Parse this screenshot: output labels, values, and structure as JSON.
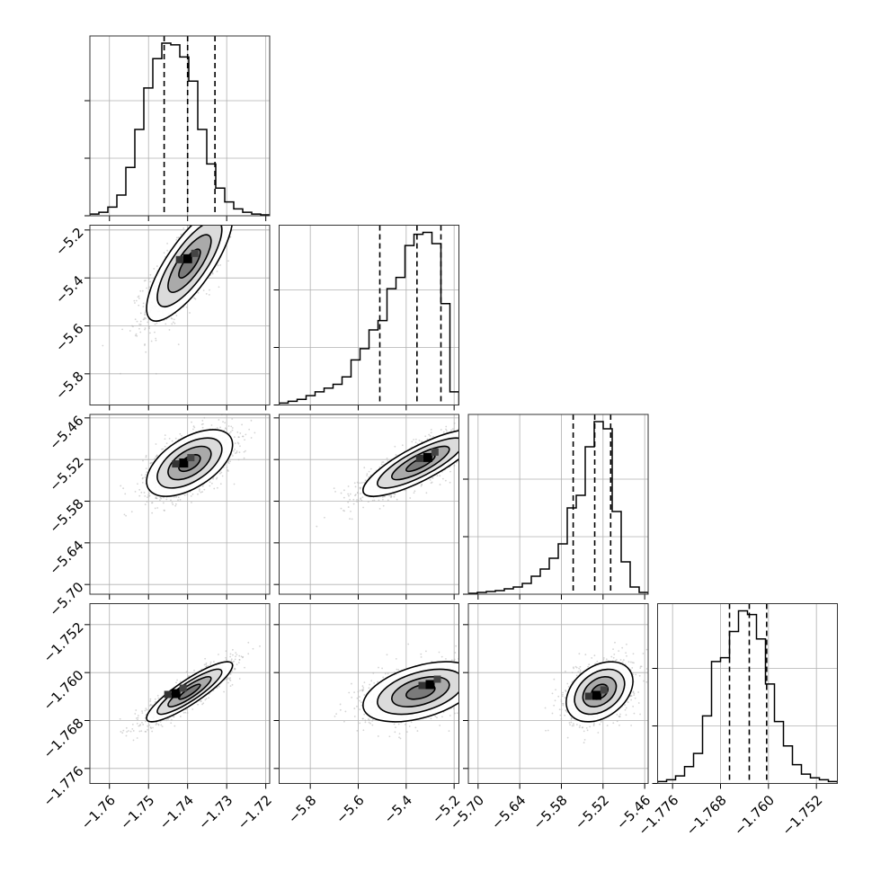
{
  "chart_data": {
    "type": "corner",
    "title": "",
    "parameters": [
      {
        "range": [
          -1.765,
          -1.719
        ],
        "ticks": [
          -1.76,
          -1.75,
          -1.74,
          -1.73,
          -1.72
        ],
        "tick_labels": [
          "−1.76",
          "−1.75",
          "−1.74",
          "−1.73",
          "−1.72"
        ],
        "histogram": {
          "bins": 20,
          "counts": [
            0.01,
            0.02,
            0.05,
            0.12,
            0.28,
            0.5,
            0.74,
            0.91,
            1.0,
            0.99,
            0.92,
            0.78,
            0.5,
            0.3,
            0.16,
            0.08,
            0.04,
            0.02,
            0.01,
            0.005
          ],
          "quantiles": [
            -1.746,
            -1.74,
            -1.733
          ]
        }
      },
      {
        "range": [
          -5.93,
          -5.18
        ],
        "ticks": [
          -5.8,
          -5.6,
          -5.4,
          -5.2
        ],
        "tick_labels": [
          "−5.8",
          "−5.6",
          "−5.4",
          "−5.2"
        ],
        "histogram": {
          "bins": 20,
          "counts": [
            0.01,
            0.02,
            0.03,
            0.05,
            0.07,
            0.09,
            0.11,
            0.15,
            0.24,
            0.3,
            0.4,
            0.45,
            0.62,
            0.68,
            0.85,
            0.91,
            0.92,
            0.86,
            0.54,
            0.07
          ],
          "quantiles": [
            -5.51,
            -5.355,
            -5.255
          ]
        }
      },
      {
        "range": [
          -5.714,
          -5.455
        ],
        "ticks": [
          -5.7,
          -5.64,
          -5.58,
          -5.52,
          -5.46
        ],
        "tick_labels": [
          "−5.70",
          "−5.64",
          "−5.58",
          "−5.52",
          "−5.46"
        ],
        "histogram": {
          "bins": 20,
          "counts": [
            0.005,
            0.01,
            0.015,
            0.02,
            0.03,
            0.04,
            0.06,
            0.1,
            0.14,
            0.2,
            0.28,
            0.48,
            0.55,
            0.82,
            0.96,
            0.92,
            0.46,
            0.18,
            0.04,
            0.01
          ],
          "quantiles": [
            -5.563,
            -5.532,
            -5.509
          ]
        }
      },
      {
        "range": [
          -1.7785,
          -1.7485
        ],
        "ticks": [
          -1.776,
          -1.768,
          -1.76,
          -1.752
        ],
        "tick_labels": [
          "−1.776",
          "−1.768",
          "−1.760",
          "−1.752"
        ],
        "histogram": {
          "bins": 20,
          "counts": [
            0.01,
            0.02,
            0.04,
            0.09,
            0.16,
            0.36,
            0.65,
            0.67,
            0.81,
            0.92,
            0.9,
            0.77,
            0.53,
            0.33,
            0.2,
            0.1,
            0.05,
            0.03,
            0.02,
            0.01
          ],
          "quantiles": [
            -1.7665,
            -1.7632,
            -1.7603
          ]
        }
      }
    ],
    "pairs": [
      {
        "x": 0,
        "y": 1,
        "center": [
          -1.7395,
          -5.34
        ],
        "spread": [
          0.0055,
          0.12
        ],
        "corr": 0.78,
        "peak": [
          -1.74,
          -5.32
        ]
      },
      {
        "x": 0,
        "y": 2,
        "center": [
          -1.7395,
          -5.525
        ],
        "spread": [
          0.0055,
          0.024
        ],
        "corr": 0.55,
        "peak": [
          -1.741,
          -5.525
        ]
      },
      {
        "x": 1,
        "y": 2,
        "center": [
          -5.34,
          -5.525
        ],
        "spread": [
          0.12,
          0.024
        ],
        "corr": 0.82,
        "peak": [
          -5.31,
          -5.517
        ]
      },
      {
        "x": 0,
        "y": 3,
        "center": [
          -1.7395,
          -1.7632
        ],
        "spread": [
          0.0055,
          0.0025
        ],
        "corr": 0.88,
        "peak": [
          -1.743,
          -1.7635
        ]
      },
      {
        "x": 1,
        "y": 3,
        "center": [
          -5.34,
          -1.7632
        ],
        "spread": [
          0.12,
          0.0025
        ],
        "corr": 0.45,
        "peak": [
          -5.3,
          -1.762
        ]
      },
      {
        "x": 2,
        "y": 3,
        "center": [
          -5.525,
          -1.7632
        ],
        "spread": [
          0.024,
          0.0025
        ],
        "corr": 0.35,
        "peak": [
          -5.529,
          -1.7638
        ]
      }
    ],
    "contour_levels_sigma": [
      0.5,
      1.0,
      1.5,
      2.0
    ],
    "colors": {
      "line": "#000000",
      "points": "#b0b0b0",
      "grid": "#b0b0b0"
    },
    "grid": true
  }
}
